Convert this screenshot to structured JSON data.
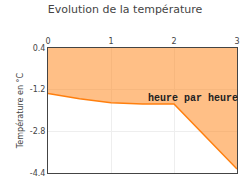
{
  "chart_data": {
    "type": "area",
    "title": "Evolution de la température",
    "ylabel": "Température en °C",
    "x": [
      0,
      0.5,
      1.0,
      1.5,
      2.0,
      2.5,
      3.0
    ],
    "values": [
      -1.35,
      -1.55,
      -1.7,
      -1.75,
      -1.75,
      -3.0,
      -4.25
    ],
    "fill_to": 0.4,
    "annotations": [
      {
        "text": "heure par heure",
        "x": 1.55,
        "y": -1.25
      }
    ],
    "xlim": [
      0,
      3
    ],
    "ylim": [
      -4.4,
      0.4
    ],
    "xticks": [
      0,
      1,
      2,
      3
    ],
    "yticks": [
      0.4,
      -1.2,
      -2.8,
      -4.4
    ],
    "grid": true
  }
}
